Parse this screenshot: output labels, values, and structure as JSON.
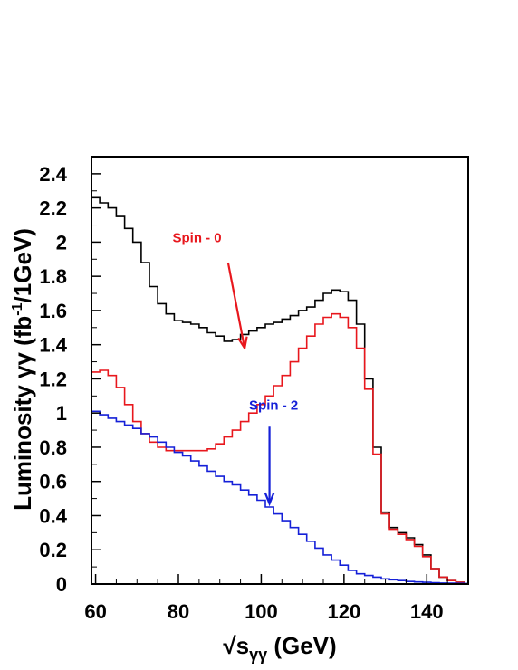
{
  "chart_data": {
    "type": "line",
    "xlabel_parts": {
      "root": "√",
      "base": "s",
      "sub": "γγ",
      "unit": " (GeV)"
    },
    "ylabel_parts": {
      "prefix": "Luminosity γγ (fb",
      "sup": "-1",
      "suffix": "/1GeV)"
    },
    "xlim": [
      59,
      150
    ],
    "ylim": [
      0,
      2.5
    ],
    "xticks": [
      60,
      80,
      100,
      120,
      140
    ],
    "xtick_labels": [
      "60",
      "80",
      "100",
      "120",
      "140"
    ],
    "yticks": [
      0,
      0.2,
      0.4,
      0.6,
      0.8,
      1,
      1.2,
      1.4,
      1.6,
      1.8,
      2,
      2.2,
      2.4
    ],
    "ytick_labels": [
      "0",
      "0.2",
      "0.4",
      "0.6",
      "0.8",
      "1",
      "1.2",
      "1.4",
      "1.6",
      "1.8",
      "2",
      "2.2",
      "2.4"
    ],
    "grid": false,
    "series": [
      {
        "color": "#000000",
        "x": [
          59,
          61,
          63,
          65,
          67,
          69,
          71,
          73,
          75,
          77,
          79,
          81,
          83,
          85,
          87,
          89,
          91,
          93,
          95,
          97,
          99,
          101,
          103,
          105,
          107,
          109,
          111,
          113,
          115,
          117,
          119,
          121,
          123,
          125,
          127,
          129,
          131,
          133,
          135,
          137,
          139,
          141,
          143,
          145,
          147,
          149
        ],
        "values": [
          2.26,
          2.23,
          2.2,
          2.15,
          2.08,
          2.0,
          1.88,
          1.74,
          1.64,
          1.58,
          1.54,
          1.53,
          1.52,
          1.5,
          1.47,
          1.45,
          1.42,
          1.43,
          1.46,
          1.48,
          1.5,
          1.52,
          1.53,
          1.55,
          1.57,
          1.6,
          1.62,
          1.66,
          1.7,
          1.72,
          1.71,
          1.66,
          1.52,
          1.2,
          0.8,
          0.42,
          0.33,
          0.3,
          0.27,
          0.23,
          0.17,
          0.09,
          0.04,
          0.02,
          0.01,
          0.0
        ]
      },
      {
        "color": "#e8171d",
        "x": [
          59,
          61,
          63,
          65,
          67,
          69,
          71,
          73,
          75,
          77,
          79,
          81,
          83,
          85,
          87,
          89,
          91,
          93,
          95,
          97,
          99,
          101,
          103,
          105,
          107,
          109,
          111,
          113,
          115,
          117,
          119,
          121,
          123,
          125,
          127,
          129,
          131,
          133,
          135,
          137,
          139,
          141,
          143,
          145,
          147,
          149
        ],
        "values": [
          1.24,
          1.25,
          1.22,
          1.15,
          1.05,
          0.95,
          0.88,
          0.83,
          0.8,
          0.78,
          0.78,
          0.78,
          0.78,
          0.78,
          0.79,
          0.82,
          0.86,
          0.9,
          0.95,
          1.0,
          1.05,
          1.1,
          1.16,
          1.22,
          1.3,
          1.38,
          1.45,
          1.52,
          1.56,
          1.58,
          1.56,
          1.5,
          1.38,
          1.14,
          0.76,
          0.41,
          0.32,
          0.29,
          0.26,
          0.22,
          0.16,
          0.09,
          0.04,
          0.02,
          0.01,
          0.0
        ]
      },
      {
        "color": "#1520d8",
        "x": [
          59,
          61,
          63,
          65,
          67,
          69,
          71,
          73,
          75,
          77,
          79,
          81,
          83,
          85,
          87,
          89,
          91,
          93,
          95,
          97,
          99,
          101,
          103,
          105,
          107,
          109,
          111,
          113,
          115,
          117,
          119,
          121,
          123,
          125,
          127,
          129,
          131,
          133,
          135,
          137,
          139,
          141,
          143,
          145,
          147,
          149
        ],
        "values": [
          1.01,
          0.99,
          0.97,
          0.95,
          0.93,
          0.91,
          0.88,
          0.86,
          0.83,
          0.8,
          0.77,
          0.75,
          0.72,
          0.69,
          0.66,
          0.63,
          0.6,
          0.58,
          0.55,
          0.52,
          0.49,
          0.45,
          0.41,
          0.37,
          0.33,
          0.29,
          0.25,
          0.21,
          0.17,
          0.14,
          0.11,
          0.08,
          0.06,
          0.05,
          0.04,
          0.03,
          0.025,
          0.02,
          0.015,
          0.012,
          0.01,
          0.008,
          0.006,
          0.005,
          0.004,
          0.003
        ]
      }
    ],
    "annotations": [
      {
        "text": "Spin - 0",
        "color": "#e8171d",
        "text_x": 84.5,
        "text_y": 2.0,
        "arrow_from": [
          92,
          1.88
        ],
        "arrow_to": [
          96,
          1.38
        ]
      },
      {
        "text": "Spin - 2",
        "color": "#1520d8",
        "text_x": 103,
        "text_y": 1.02,
        "arrow_from": [
          102,
          0.92
        ],
        "arrow_to": [
          102,
          0.47
        ]
      }
    ]
  }
}
